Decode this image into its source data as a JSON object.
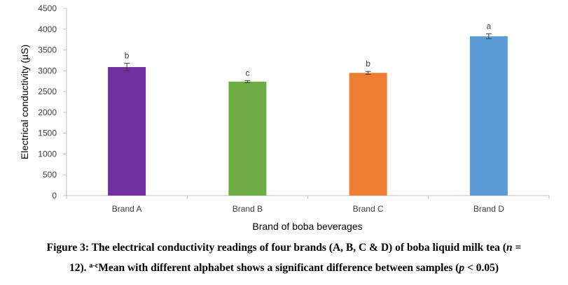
{
  "chart_data": {
    "type": "bar",
    "categories": [
      "Brand A",
      "Brand B",
      "Brand C",
      "Brand D"
    ],
    "values": [
      3090,
      2740,
      2950,
      3830
    ],
    "errors": [
      90,
      25,
      35,
      60
    ],
    "significance": [
      "b",
      "c",
      "b",
      "a"
    ],
    "colors": [
      "#7030a0",
      "#70ad47",
      "#ed7d31",
      "#5b9bd5"
    ],
    "xlabel": "Brand of boba beverages",
    "ylabel": "Electrical conductivity (µS)",
    "ylim": [
      0,
      4500
    ],
    "yticks": [
      0,
      500,
      1000,
      1500,
      2000,
      2500,
      3000,
      3500,
      4000,
      4500
    ],
    "grid": false
  },
  "caption": {
    "line1_pre": "Figure 3: The electrical conductivity readings of four brands (A, B, C & D) of boba liquid milk tea (",
    "line1_n": "n",
    "line1_post": " =",
    "line2_pre": "12). ",
    "line2_sup": "a-c",
    "line2_mid": "Mean with different alphabet shows a significant difference between samples (",
    "line2_p": "p",
    "line2_post": " < 0.05)"
  }
}
